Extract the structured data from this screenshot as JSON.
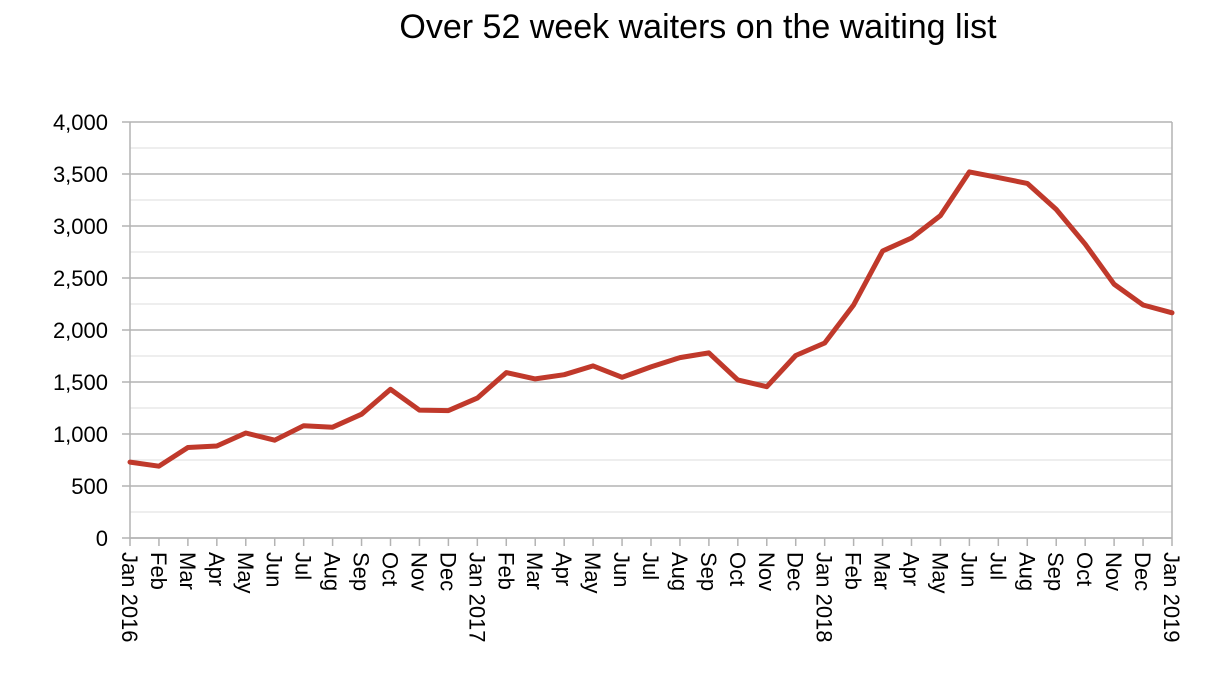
{
  "chart_data": {
    "type": "line",
    "title": "Over 52 week waiters on the waiting list",
    "xlabel": "",
    "ylabel": "",
    "ylim": [
      0,
      4000
    ],
    "yticks": [
      "0",
      "500",
      "1,000",
      "1,500",
      "2,000",
      "2,500",
      "3,000",
      "3,500",
      "4,000"
    ],
    "ytick_values": [
      0,
      500,
      1000,
      1500,
      2000,
      2500,
      3000,
      3500,
      4000
    ],
    "grid": true,
    "legend": "none",
    "categories": [
      "Jan 2016",
      "Feb",
      "Mar",
      "Apr",
      "May",
      "Jun",
      "Jul",
      "Aug",
      "Sep",
      "Oct",
      "Nov",
      "Dec",
      "Jan 2017",
      "Feb",
      "Mar",
      "Apr",
      "May",
      "Jun",
      "Jul",
      "Aug",
      "Sep",
      "Oct",
      "Nov",
      "Dec",
      "Jan 2018",
      "Feb",
      "Mar",
      "Apr",
      "May",
      "Jun",
      "Jul",
      "Aug",
      "Sep",
      "Oct",
      "Nov",
      "Dec",
      "Jan 2019"
    ],
    "series": [
      {
        "values": [
          730,
          690,
          870,
          885,
          1010,
          940,
          1080,
          1065,
          1190,
          1430,
          1230,
          1225,
          1345,
          1590,
          1530,
          1570,
          1655,
          1545,
          1645,
          1735,
          1780,
          1520,
          1455,
          1755,
          1875,
          2240,
          2760,
          2885,
          3100,
          3520,
          3465,
          3410,
          3160,
          2825,
          2440,
          2240,
          2165
        ],
        "color": "#C0392B"
      }
    ],
    "colors": {
      "line": "#C0392B",
      "grid_major": "#b3b3b3",
      "grid_minor": "#dcdcdc",
      "axis": "#b3b3b3"
    }
  }
}
